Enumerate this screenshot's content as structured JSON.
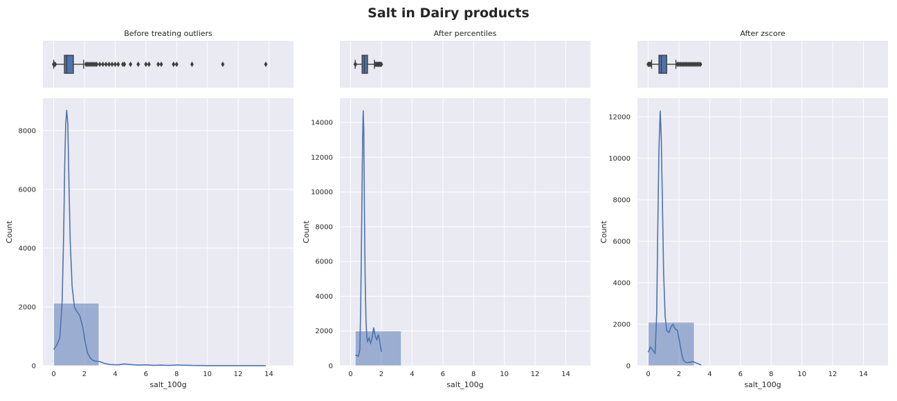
{
  "figure": {
    "title": "Salt in Dairy products"
  },
  "colors": {
    "background": "#eaeaf2",
    "grid": "#ffffff",
    "bar": "#4c72b0",
    "line": "#4c72b0",
    "box_edge": "#3f3f3f"
  },
  "chart_data": [
    {
      "type": "bar",
      "panel_title": "Before treating outliers",
      "xlabel": "salt_100g",
      "ylabel": "Count",
      "xlim": [
        -0.7,
        15.6
      ],
      "ylim": [
        0,
        9100
      ],
      "xticks": [
        0,
        2,
        4,
        6,
        8,
        10,
        12,
        14
      ],
      "yticks": [
        0,
        2000,
        4000,
        6000,
        8000
      ],
      "bars": [
        {
          "x0": 0,
          "x1": 2.95,
          "count": 2130
        },
        {
          "x0": 2.95,
          "x1": 13.8,
          "count": 5
        }
      ],
      "kde": {
        "x": [
          0,
          0.2,
          0.4,
          0.55,
          0.65,
          0.72,
          0.78,
          0.85,
          0.92,
          1.0,
          1.08,
          1.2,
          1.35,
          1.5,
          1.7,
          1.9,
          2.05,
          2.2,
          2.4,
          2.6,
          2.8,
          3.0,
          3.3,
          3.7,
          4.2,
          4.6,
          5.0,
          5.5,
          6.0,
          6.5,
          7.0,
          7.5,
          8.0,
          9.0,
          10.0,
          11.0,
          12.0,
          13.0,
          13.8
        ],
        "y": [
          550,
          700,
          950,
          2200,
          4500,
          6800,
          8200,
          8700,
          8200,
          6000,
          4200,
          2700,
          2000,
          1850,
          1700,
          1300,
          800,
          430,
          250,
          170,
          150,
          140,
          80,
          40,
          30,
          60,
          40,
          20,
          30,
          15,
          20,
          10,
          25,
          10,
          5,
          5,
          5,
          5,
          3
        ]
      },
      "box": {
        "q1": 0.7,
        "median": 0.85,
        "q3": 1.28,
        "whisker_low": 0,
        "whisker_high": 1.95,
        "outliers": [
          0,
          0.05,
          0.1,
          2.1,
          2.2,
          2.3,
          2.4,
          2.5,
          2.6,
          2.7,
          2.8,
          3.0,
          3.2,
          3.4,
          3.6,
          3.8,
          4.0,
          4.2,
          4.5,
          4.6,
          5.0,
          5.5,
          6.0,
          6.2,
          6.8,
          7.0,
          7.8,
          8.0,
          9.0,
          11.0,
          13.8
        ]
      }
    },
    {
      "type": "bar",
      "panel_title": "After percentiles",
      "xlabel": "salt_100g",
      "ylabel": "Count",
      "xlim": [
        -0.7,
        15.6
      ],
      "ylim": [
        0,
        15400
      ],
      "xticks": [
        0,
        2,
        4,
        6,
        8,
        10,
        12,
        14
      ],
      "yticks": [
        0,
        2000,
        4000,
        6000,
        8000,
        10000,
        12000,
        14000
      ],
      "bars": [
        {
          "x0": 0.3,
          "x1": 3.3,
          "count": 2000
        }
      ],
      "kde": {
        "x": [
          0.3,
          0.4,
          0.5,
          0.6,
          0.66,
          0.72,
          0.78,
          0.82,
          0.86,
          0.9,
          0.95,
          1.0,
          1.05,
          1.1,
          1.2,
          1.3,
          1.4,
          1.5,
          1.6,
          1.7,
          1.8,
          1.9,
          2.0
        ],
        "y": [
          600,
          600,
          550,
          900,
          3500,
          8000,
          13000,
          14700,
          13500,
          9000,
          5000,
          2600,
          1700,
          1400,
          1600,
          1300,
          1600,
          2200,
          1700,
          1500,
          1800,
          1400,
          800
        ]
      },
      "box": {
        "q1": 0.75,
        "median": 0.9,
        "q3": 1.1,
        "whisker_low": 0.3,
        "whisker_high": 1.55,
        "outliers": [
          0.3,
          0.32,
          1.6,
          1.65,
          1.7,
          1.75,
          1.8,
          1.85,
          1.9,
          1.95,
          2.0
        ]
      }
    },
    {
      "type": "bar",
      "panel_title": "After zscore",
      "xlabel": "salt_100g",
      "ylabel": "Count",
      "xlim": [
        -0.7,
        15.6
      ],
      "ylim": [
        0,
        12900
      ],
      "xticks": [
        0,
        2,
        4,
        6,
        8,
        10,
        12,
        14
      ],
      "yticks": [
        0,
        2000,
        4000,
        6000,
        8000,
        10000,
        12000
      ],
      "bars": [
        {
          "x0": 0,
          "x1": 3.0,
          "count": 2100
        }
      ],
      "kde": {
        "x": [
          0,
          0.15,
          0.3,
          0.45,
          0.55,
          0.62,
          0.7,
          0.78,
          0.85,
          0.92,
          1.0,
          1.1,
          1.2,
          1.35,
          1.5,
          1.6,
          1.7,
          1.8,
          1.9,
          2.0,
          2.1,
          2.2,
          2.3,
          2.5,
          2.7,
          2.9,
          3.1,
          3.3,
          3.45
        ],
        "y": [
          650,
          900,
          750,
          600,
          2500,
          6500,
          10500,
          12300,
          11000,
          8000,
          4500,
          2400,
          1700,
          1600,
          1900,
          2000,
          1850,
          1750,
          1700,
          1300,
          900,
          500,
          250,
          150,
          160,
          200,
          140,
          80,
          30
        ]
      },
      "box": {
        "q1": 0.7,
        "median": 0.85,
        "q3": 1.2,
        "whisker_low": 0.22,
        "whisker_high": 1.8,
        "outliers": [
          0,
          0.05,
          0.1,
          0.15,
          1.9,
          2.0,
          2.1,
          2.2,
          2.3,
          2.4,
          2.5,
          2.6,
          2.7,
          2.8,
          2.9,
          3.0,
          3.1,
          3.2,
          3.3,
          3.4
        ]
      }
    }
  ]
}
